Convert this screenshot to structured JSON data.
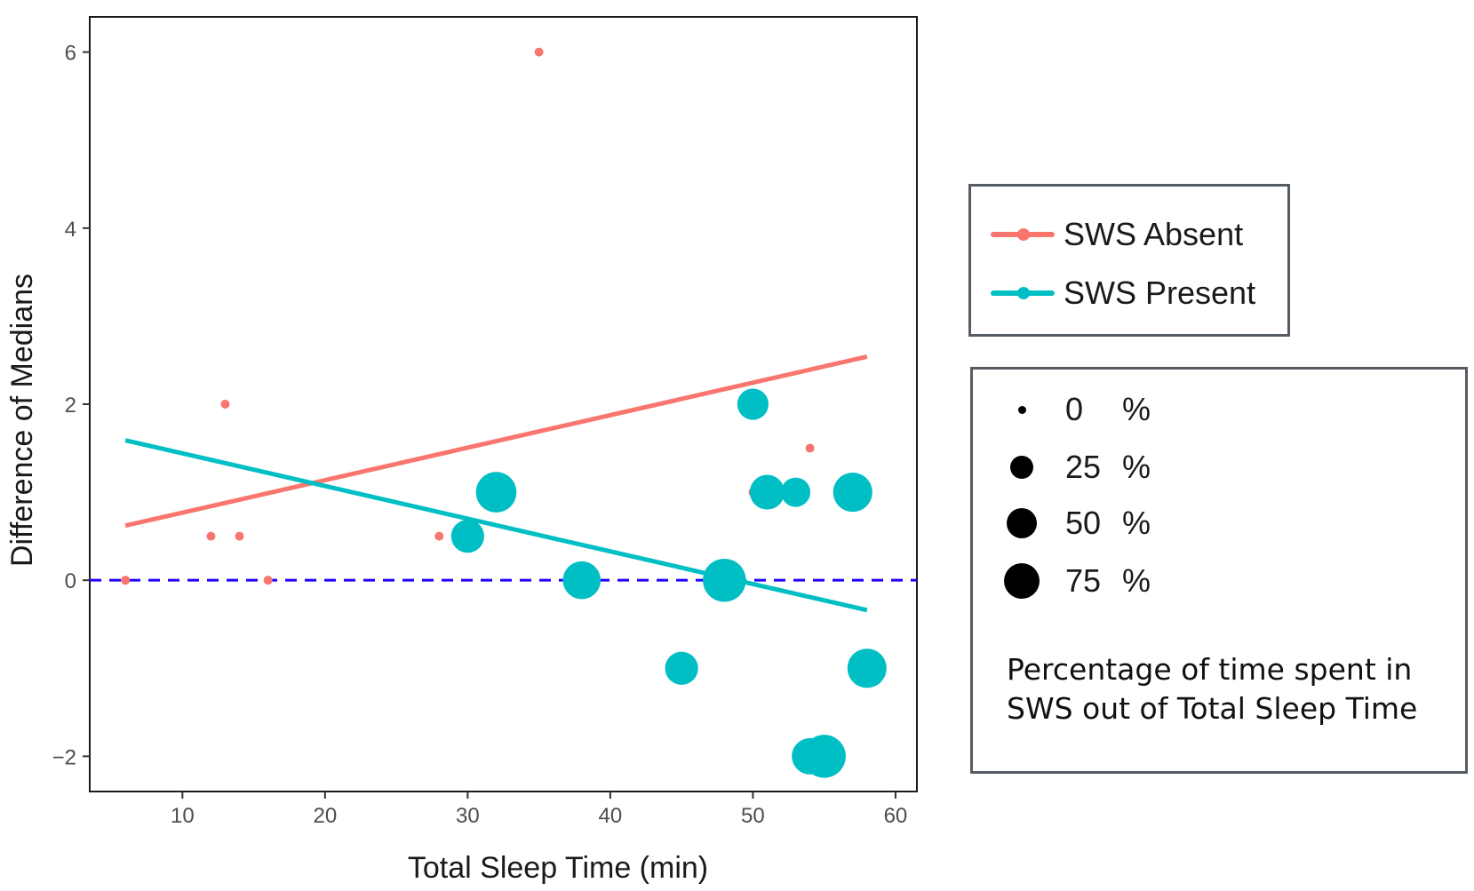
{
  "chart_data": {
    "type": "scatter",
    "xlabel": "Total Sleep Time (min)",
    "ylabel": "Difference of Medians",
    "xlim": [
      3.5,
      61.5
    ],
    "ylim": [
      -2.4,
      6.4
    ],
    "x_ticks": [
      10,
      20,
      30,
      40,
      50,
      60
    ],
    "y_ticks": [
      -2,
      0,
      2,
      4,
      6
    ],
    "y_tick_labels": [
      "−2",
      "0",
      "2",
      "4",
      "6"
    ],
    "grid": false,
    "reference_line": {
      "y": 0,
      "style": "dashed",
      "color": "#1f00ff"
    },
    "series": [
      {
        "name": "SWS Absent",
        "color": "#f8766d",
        "points": [
          {
            "x": 6,
            "y": 0
          },
          {
            "x": 12,
            "y": 0.5
          },
          {
            "x": 13,
            "y": 2
          },
          {
            "x": 14,
            "y": 0.5
          },
          {
            "x": 16,
            "y": 0
          },
          {
            "x": 28,
            "y": 0.5
          },
          {
            "x": 35,
            "y": 6
          },
          {
            "x": 50,
            "y": 1
          },
          {
            "x": 54,
            "y": 1.5
          }
        ],
        "sws_percent": [
          0,
          0,
          0,
          0,
          0,
          0,
          0,
          0,
          0
        ],
        "trend_line": {
          "x": [
            6,
            58
          ],
          "y": [
            0.62,
            2.54
          ]
        }
      },
      {
        "name": "SWS Present",
        "color": "#00bfc4",
        "points": [
          {
            "x": 30,
            "y": 0.5
          },
          {
            "x": 32,
            "y": 1
          },
          {
            "x": 38,
            "y": 0
          },
          {
            "x": 45,
            "y": -1
          },
          {
            "x": 48,
            "y": 0
          },
          {
            "x": 50,
            "y": 2
          },
          {
            "x": 51,
            "y": 1
          },
          {
            "x": 53,
            "y": 1
          },
          {
            "x": 54,
            "y": -2
          },
          {
            "x": 55,
            "y": -2
          },
          {
            "x": 57,
            "y": 1
          },
          {
            "x": 58,
            "y": -1
          }
        ],
        "sws_percent": [
          35,
          60,
          50,
          35,
          70,
          30,
          40,
          25,
          45,
          70,
          55,
          55
        ],
        "trend_line": {
          "x": [
            6,
            58
          ],
          "y": [
            1.59,
            -0.34
          ]
        }
      }
    ],
    "size_legend": {
      "entries": [
        {
          "value": "0",
          "unit": "%",
          "percent": 0
        },
        {
          "value": "25",
          "unit": "%",
          "percent": 25
        },
        {
          "value": "50",
          "unit": "%",
          "percent": 50
        },
        {
          "value": "75",
          "unit": "%",
          "percent": 75
        }
      ],
      "caption": "Percentage of time spent in SWS out of Total Sleep Time"
    }
  }
}
